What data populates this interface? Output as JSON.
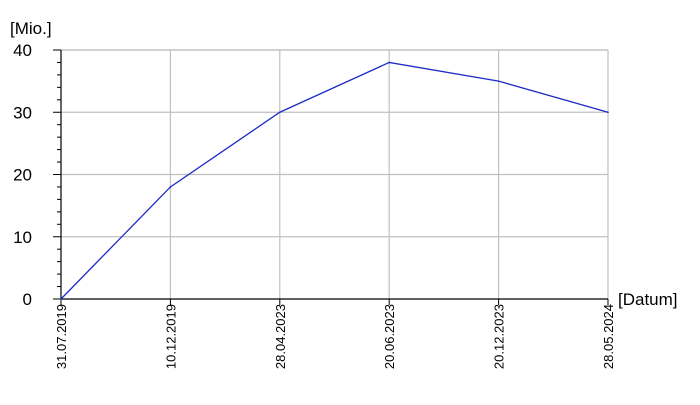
{
  "chart_data": {
    "type": "line",
    "title": "",
    "xlabel": "[Datum]",
    "ylabel": "[Mio.]",
    "categories": [
      "31.07.2019",
      "10.12.2019",
      "28.04.2023",
      "20.06.2023",
      "20.12.2023",
      "28.05.2024"
    ],
    "series": [
      {
        "values": [
          0,
          18,
          30,
          38,
          35,
          30
        ]
      }
    ],
    "ylim": [
      0,
      40
    ],
    "yticks": [
      0,
      10,
      20,
      30,
      40
    ],
    "grid": true,
    "colors": {
      "line": "#1c2bc4",
      "grid": "#c0c0c0",
      "axis": "#000000"
    }
  }
}
